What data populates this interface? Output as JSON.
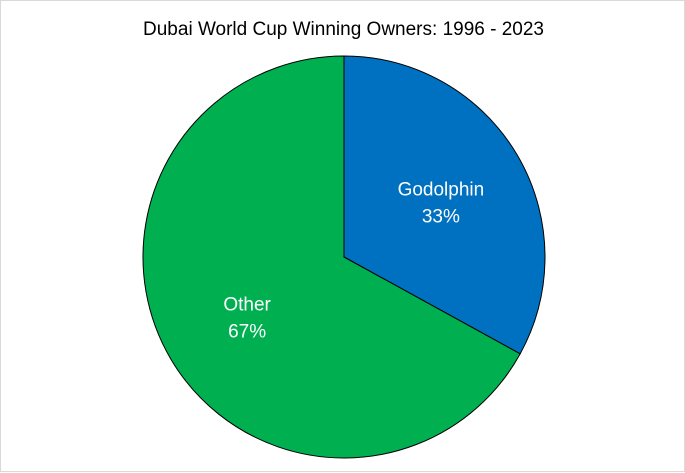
{
  "chart_data": {
    "type": "pie",
    "title": "Dubai World Cup Winning Owners: 1996 - 2023",
    "categories": [
      "Godolphin",
      "Other"
    ],
    "values": [
      33,
      67
    ],
    "data_labels": [
      {
        "category": "Godolphin",
        "percent_text": "33%"
      },
      {
        "category": "Other",
        "percent_text": "67%"
      }
    ],
    "colors": [
      "#0070c0",
      "#00b050"
    ],
    "slice_border_color": "#000000",
    "legend": "none",
    "start_angle": "12 o'clock",
    "direction": "clockwise"
  }
}
